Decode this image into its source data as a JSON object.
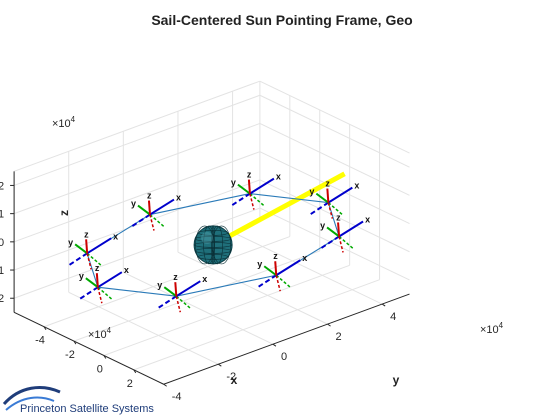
{
  "chart_data": {
    "type": "3d-line",
    "title": "Sail-Centered Sun Pointing Frame, Geo",
    "xlabel": "x",
    "ylabel": "y",
    "zlabel": "z",
    "x_exponent": "×10",
    "x_exponent_power": "4",
    "y_exponent": "×10",
    "y_exponent_power": "4",
    "z_exponent": "×10",
    "z_exponent_power": "4",
    "x_ticks": [
      "-4",
      "-2",
      "0",
      "2"
    ],
    "y_ticks": [
      "-4",
      "-2",
      "0",
      "2",
      "4"
    ],
    "z_ticks": [
      "-2",
      "-1",
      "0",
      "1",
      "2"
    ],
    "xlim": [
      -6,
      4
    ],
    "ylim": [
      -4,
      5
    ],
    "zlim": [
      -2.5,
      2.5
    ],
    "grid": true,
    "orbit_color": "#2a7ab8",
    "sun_line_color": "#ffff00",
    "earth_color": "#1f6f7a",
    "triad_colors": {
      "x": "#0000cc",
      "y": "#00aa00",
      "z": "#cc0000"
    },
    "triad_labels": {
      "x": "x",
      "y": "y",
      "z": "z"
    },
    "orbit_points": [
      {
        "x": 4.22,
        "y": 0.0,
        "z": 0.0
      },
      {
        "x": 2.98,
        "y": 2.98,
        "z": 0.0
      },
      {
        "x": 0.0,
        "y": 4.22,
        "z": 0.0
      },
      {
        "x": -2.98,
        "y": 2.98,
        "z": 0.0
      },
      {
        "x": -4.22,
        "y": 0.0,
        "z": 0.0
      },
      {
        "x": -2.98,
        "y": -2.98,
        "z": 0.0
      },
      {
        "x": 0.0,
        "y": -4.22,
        "z": 0.0
      },
      {
        "x": 2.98,
        "y": -2.98,
        "z": 0.0
      },
      {
        "x": 4.22,
        "y": 0.0,
        "z": 0.0
      }
    ],
    "sun_line": [
      {
        "x": 0,
        "y": 0,
        "z": 0
      },
      {
        "x": -1.8,
        "y": 5.8,
        "z": 0
      }
    ]
  },
  "logo": {
    "text": "Princeton Satellite Systems"
  }
}
